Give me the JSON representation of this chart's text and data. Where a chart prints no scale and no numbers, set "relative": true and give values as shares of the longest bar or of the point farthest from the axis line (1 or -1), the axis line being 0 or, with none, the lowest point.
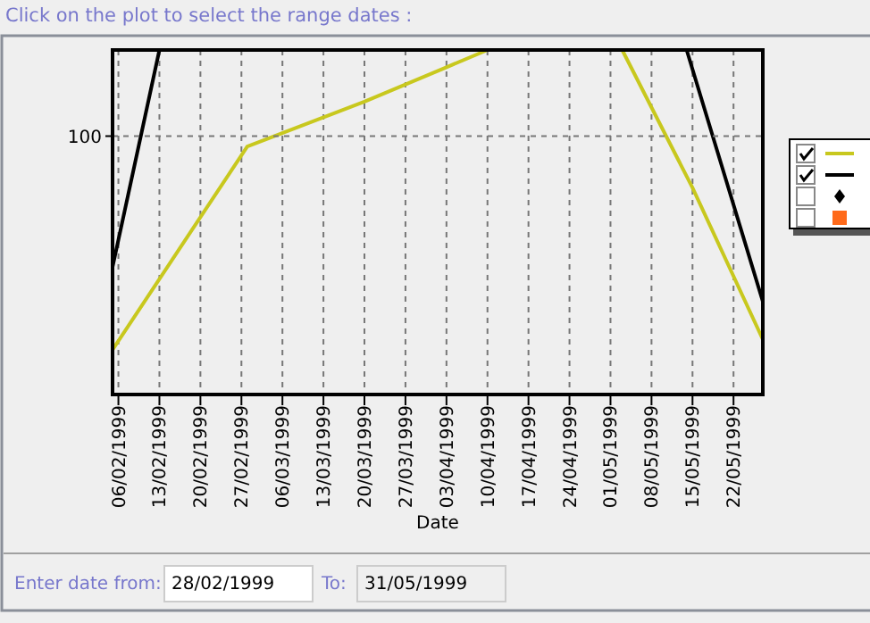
{
  "chart_data": {
    "type": "line",
    "relative": true,
    "title": "Click on the plot to select the range dates :",
    "xlabel": "Date",
    "xlim": [
      "1999-02-05",
      "1999-05-27"
    ],
    "xticks": [
      {
        "value": "1999-02-06",
        "label": "06/02/1999"
      },
      {
        "value": "1999-02-13",
        "label": "13/02/1999"
      },
      {
        "value": "1999-02-20",
        "label": "20/02/1999"
      },
      {
        "value": "1999-02-27",
        "label": "27/02/1999"
      },
      {
        "value": "1999-03-06",
        "label": "06/03/1999"
      },
      {
        "value": "1999-03-13",
        "label": "13/03/1999"
      },
      {
        "value": "1999-03-20",
        "label": "20/03/1999"
      },
      {
        "value": "1999-03-27",
        "label": "27/03/1999"
      },
      {
        "value": "1999-04-03",
        "label": "03/04/1999"
      },
      {
        "value": "1999-04-10",
        "label": "10/04/1999"
      },
      {
        "value": "1999-04-17",
        "label": "17/04/1999"
      },
      {
        "value": "1999-04-24",
        "label": "24/04/1999"
      },
      {
        "value": "1999-05-01",
        "label": "01/05/1999"
      },
      {
        "value": "1999-05-08",
        "label": "08/05/1999"
      },
      {
        "value": "1999-05-15",
        "label": "15/05/1999"
      },
      {
        "value": "1999-05-22",
        "label": "22/05/1999"
      }
    ],
    "series": [
      {
        "color": "#c8c81e",
        "x": [
          "1999-02-05",
          "1999-02-28",
          "1999-03-20",
          "1999-04-03",
          "1999-04-10",
          "1999-04-20",
          "1999-05-03",
          "1999-05-15",
          "1999-05-27"
        ],
        "values": [
          0.13,
          0.72,
          0.85,
          0.95,
          1,
          null,
          1,
          0.6,
          0.16
        ]
      },
      {
        "color": "#000000",
        "x": [
          "1999-02-05",
          "1999-02-13",
          "1999-04-20",
          "1999-05-14",
          "1999-05-27"
        ],
        "values": [
          0.37,
          1,
          null,
          1,
          0.27
        ]
      }
    ],
    "grid": "x",
    "annotations": [
      "100",
      "Enter date from:",
      "28/02/1999",
      "To:",
      "31/05/1999"
    ]
  }
}
